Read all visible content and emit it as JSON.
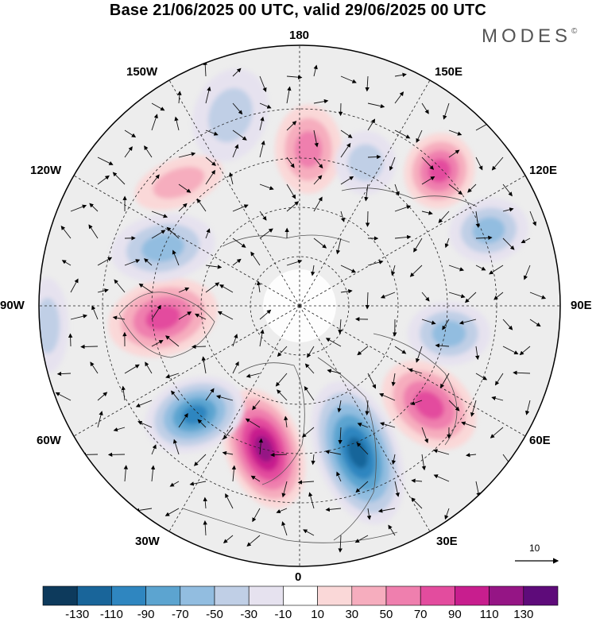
{
  "title": "Base 21/06/2025 00 UTC, valid 29/06/2025 00 UTC",
  "brand": "MODES",
  "brand_mark": "©",
  "longitude_labels": {
    "lon_180": "180",
    "lon_150e": "150E",
    "lon_120e": "120E",
    "lon_90e": "90E",
    "lon_60e": "60E",
    "lon_30e": "30E",
    "lon_0": "0",
    "lon_30w": "30W",
    "lon_60w": "60W",
    "lon_90w": "90W",
    "lon_120w": "120W",
    "lon_150w": "150W"
  },
  "reference_vector": {
    "value": "10"
  },
  "colorbar": {
    "colors": [
      "#0d3a5c",
      "#19659a",
      "#2f86c0",
      "#5ca4d0",
      "#92bde0",
      "#c0cfe6",
      "#e6e2ef",
      "#ffffff",
      "#fad8d8",
      "#f6adbe",
      "#ef7fae",
      "#e34c9e",
      "#c81e8e",
      "#951585",
      "#5e0b7a"
    ],
    "labels": [
      "-130",
      "-110",
      "-90",
      "-70",
      "-50",
      "-30",
      "-10",
      "10",
      "30",
      "50",
      "70",
      "90",
      "110",
      "130"
    ]
  }
}
